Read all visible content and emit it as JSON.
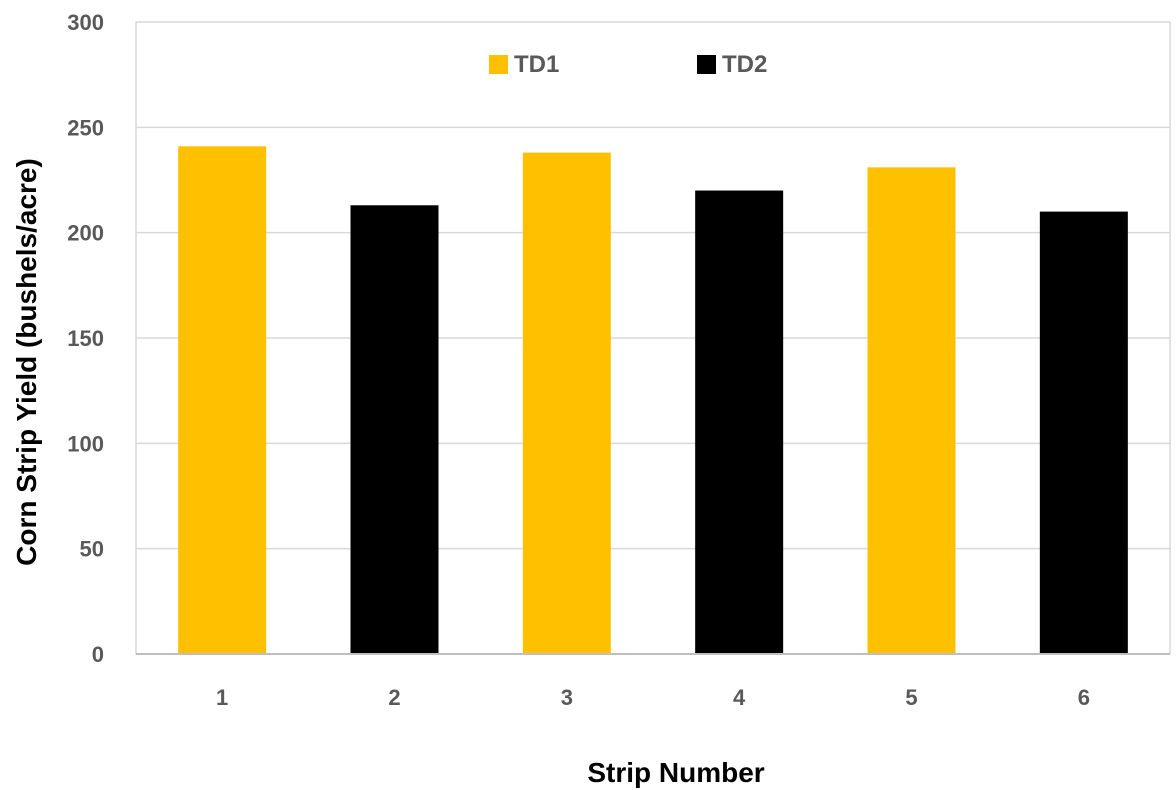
{
  "chart_data": {
    "type": "bar",
    "categories": [
      "1",
      "2",
      "3",
      "4",
      "5",
      "6"
    ],
    "values": [
      241,
      213,
      238,
      220,
      231,
      210
    ],
    "series_assignment": [
      "TD1",
      "TD2",
      "TD1",
      "TD2",
      "TD1",
      "TD2"
    ],
    "legend": [
      {
        "name": "TD1",
        "color": "#FFC000"
      },
      {
        "name": "TD2",
        "color": "#000000"
      }
    ],
    "title": "",
    "xlabel": "Strip Number",
    "ylabel": "Corn Strip Yield (bushels/acre)",
    "ylim": [
      0,
      300
    ],
    "yticks": [
      0,
      50,
      100,
      150,
      200,
      250,
      300
    ],
    "grid": true,
    "legend_position": "top-center"
  }
}
